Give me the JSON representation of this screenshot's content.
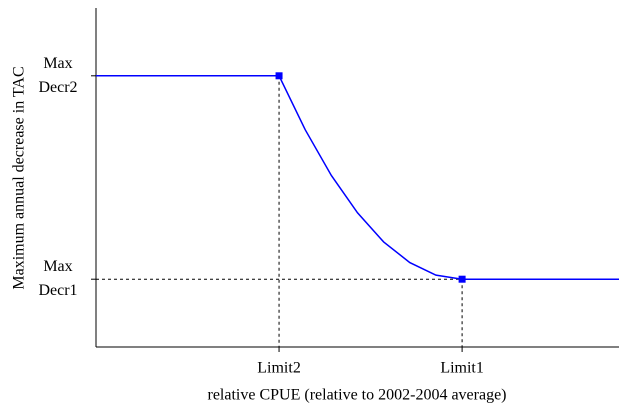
{
  "chart_data": {
    "type": "line",
    "x_label": "relative CPUE (relative to 2002-2004 average)",
    "y_label": "Maximum annual decrease in TAC",
    "x": [
      0,
      3.5,
      4,
      4.5,
      5,
      5.5,
      6,
      6.5,
      7,
      10
    ],
    "series": [
      {
        "color": "#0000ff",
        "values": [
          8,
          8,
          6.41,
          5.06,
          3.96,
          3.1,
          2.49,
          2.12,
          2,
          2
        ]
      }
    ],
    "points": {
      "x": [
        3.5,
        7
      ],
      "values": [
        8,
        2
      ],
      "marker": "square",
      "color": "#0000ff"
    },
    "xlim": [
      0,
      10
    ],
    "ylim": [
      0,
      10
    ],
    "xticks": [
      {
        "value": 3.5,
        "label": "Limit2"
      },
      {
        "value": 7,
        "label": "Limit1"
      }
    ],
    "yticks": [
      {
        "value": 2,
        "label": "Max Decr1"
      },
      {
        "value": 8,
        "label": "Max Decr2"
      }
    ]
  }
}
